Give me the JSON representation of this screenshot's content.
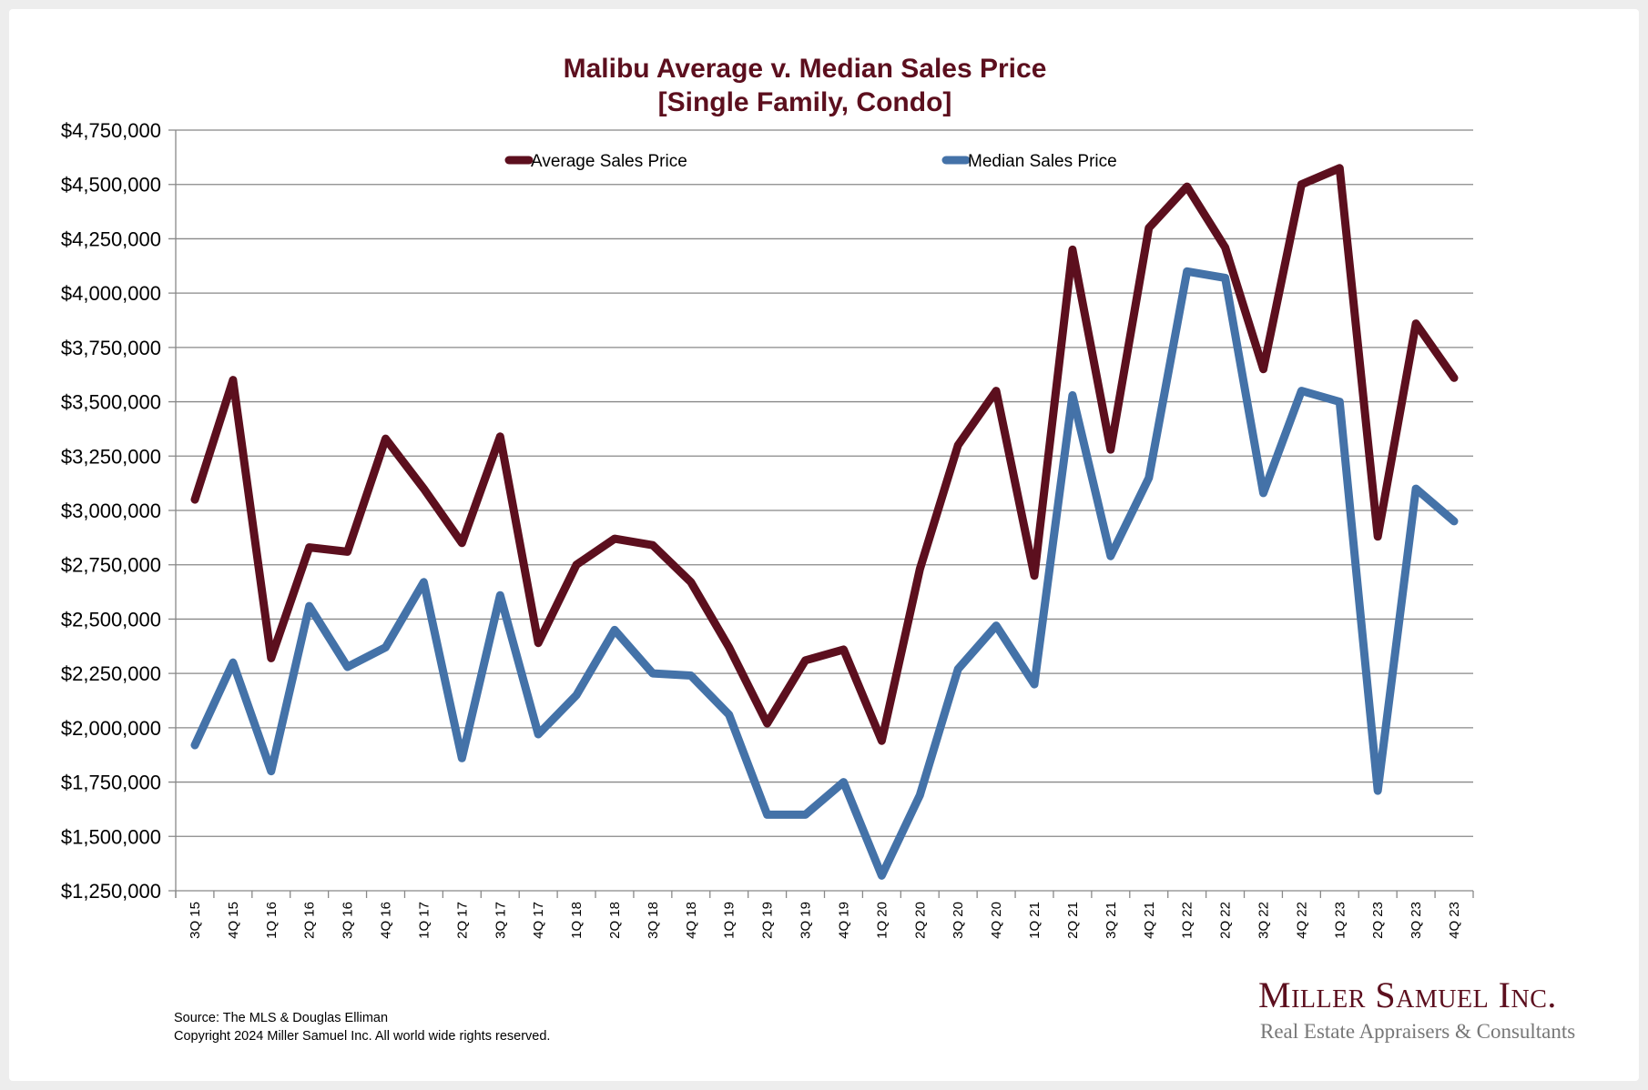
{
  "chart_data": {
    "type": "line",
    "title": "Malibu Average v. Median Sales Price",
    "subtitle": "[Single Family, Condo]",
    "xlabel": "",
    "ylabel": "",
    "ylim": [
      1250000,
      4750000
    ],
    "yticks": [
      1250000,
      1500000,
      1750000,
      2000000,
      2250000,
      2500000,
      2750000,
      3000000,
      3250000,
      3500000,
      3750000,
      4000000,
      4250000,
      4500000,
      4750000
    ],
    "ytick_labels": [
      "$1,250,000",
      "$1,500,000",
      "$1,750,000",
      "$2,000,000",
      "$2,250,000",
      "$2,500,000",
      "$2,750,000",
      "$3,000,000",
      "$3,250,000",
      "$3,500,000",
      "$3,750,000",
      "$4,000,000",
      "$4,250,000",
      "$4,500,000",
      "$4,750,000"
    ],
    "grid": true,
    "legend_position": "top-center",
    "categories": [
      "3Q 15",
      "4Q 15",
      "1Q 16",
      "2Q 16",
      "3Q 16",
      "4Q 16",
      "1Q 17",
      "2Q 17",
      "3Q 17",
      "4Q 17",
      "1Q 18",
      "2Q 18",
      "3Q 18",
      "4Q 18",
      "1Q 19",
      "2Q 19",
      "3Q 19",
      "4Q 19",
      "1Q 20",
      "2Q 20",
      "3Q 20",
      "4Q 20",
      "1Q 21",
      "2Q 21",
      "3Q 21",
      "4Q 21",
      "1Q 22",
      "2Q 22",
      "3Q 22",
      "4Q 22",
      "1Q 23",
      "2Q 23",
      "3Q 23",
      "4Q 23"
    ],
    "series": [
      {
        "name": "Average Sales Price",
        "color": "#5c0f1e",
        "values": [
          3050000,
          3600000,
          2320000,
          2830000,
          2810000,
          3330000,
          3100000,
          2850000,
          3340000,
          2390000,
          2750000,
          2870000,
          2840000,
          2670000,
          2370000,
          2020000,
          2310000,
          2360000,
          1940000,
          2730000,
          3300000,
          3550000,
          2700000,
          4200000,
          3280000,
          4300000,
          4490000,
          4210000,
          3650000,
          4500000,
          4575000,
          2880000,
          3860000,
          3610000
        ]
      },
      {
        "name": "Median Sales Price",
        "color": "#4472a8",
        "values": [
          1920000,
          2300000,
          1800000,
          2560000,
          2280000,
          2370000,
          2670000,
          1860000,
          2610000,
          1970000,
          2150000,
          2450000,
          2250000,
          2240000,
          2060000,
          1600000,
          1600000,
          1750000,
          1320000,
          1690000,
          2270000,
          2470000,
          2200000,
          3530000,
          2790000,
          3150000,
          4100000,
          4070000,
          3080000,
          3550000,
          3500000,
          1710000,
          3100000,
          2950000
        ]
      }
    ]
  },
  "footer": {
    "source": "Source: The MLS & Douglas Elliman",
    "copyright": "Copyright 2024 Miller Samuel Inc.  All world wide rights reserved."
  },
  "logo": {
    "name": "Miller Samuel Inc.",
    "tagline": "Real Estate Appraisers & Consultants"
  }
}
